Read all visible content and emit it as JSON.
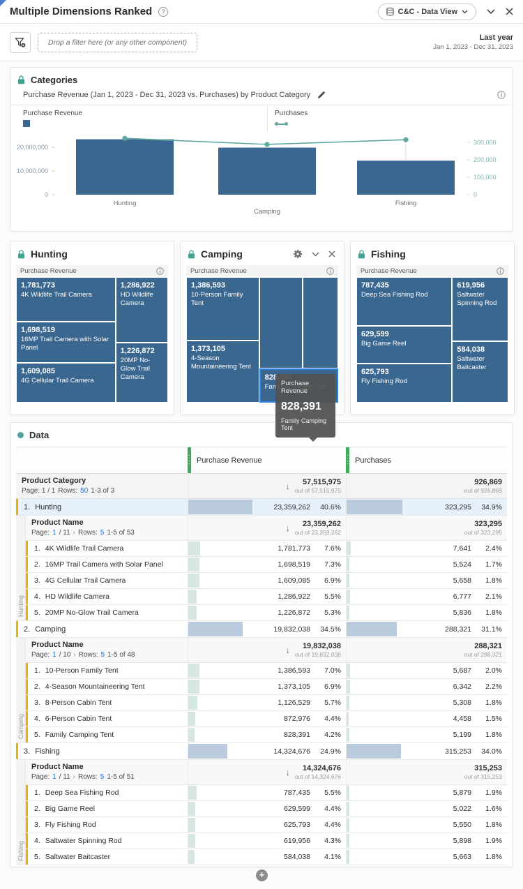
{
  "page": {
    "title": "Multiple Dimensions Ranked",
    "help": "?",
    "dataview_label": "C&C - Data View",
    "add_label": "+",
    "filter_bar": {
      "drop_placeholder": "Drop a filter here (or any other component)",
      "range_label": "Last year",
      "range_dates": "Jan 1, 2023 - Dec 31, 2023"
    }
  },
  "colors": {
    "bar_blue": "#3a6790",
    "line_teal": "#5fa8a0",
    "accent_yellow": "#efb100",
    "handle_green": "#3cab5a",
    "link_blue": "#1473e6",
    "selected_row": "#e7f1fb",
    "category_bar": "#b9cbdc",
    "product_bar": "#d6e7e3"
  },
  "categories_panel": {
    "title": "Categories",
    "subtitle": "Purchase Revenue (Jan 1, 2023 - Dec 31, 2023 vs. Purchases) by Product Category",
    "legend_left": "Purchase Revenue",
    "legend_right": "Purchases"
  },
  "chart_data": {
    "type": "bar",
    "categories": [
      "Hunting",
      "Camping",
      "Fishing"
    ],
    "series": [
      {
        "name": "Purchase Revenue",
        "type": "bar",
        "axis": "left",
        "color": "#3a6790",
        "values": [
          23359262,
          19832038,
          14324676
        ]
      },
      {
        "name": "Purchases",
        "type": "line",
        "axis": "right",
        "color": "#5fa8a0",
        "values": [
          323295,
          288321,
          315253
        ]
      }
    ],
    "left_axis": {
      "ticks": [
        {
          "label": "20,000,000",
          "value": 20000000
        },
        {
          "label": "10,000,000",
          "value": 10000000
        },
        {
          "label": "0",
          "value": 0
        }
      ],
      "max": 26000000
    },
    "right_axis": {
      "ticks": [
        {
          "label": "300,000",
          "value": 300000
        },
        {
          "label": "200,000",
          "value": 200000
        },
        {
          "label": "100,000",
          "value": 100000
        },
        {
          "label": "0",
          "value": 0
        }
      ],
      "max": 340000
    },
    "title": "Purchase Revenue (Jan 1, 2023 - Dec 31, 2023 vs. Purchases) by Product Category",
    "grid": false,
    "legend_position": "top"
  },
  "treemaps": [
    {
      "title": "Hunting",
      "metric_label": "Purchase Revenue",
      "cells": [
        {
          "value": "1,781,773",
          "name": "4K Wildlife Trail Camera"
        },
        {
          "value": "1,698,519",
          "name": "16MP Trail Camera with Solar Panel"
        },
        {
          "value": "1,609,085",
          "name": "4G Cellular Trail Camera"
        },
        {
          "value": "1,286,922",
          "name": "HD Wildlife Camera"
        },
        {
          "value": "1,226,872",
          "name": "20MP No-Glow Trail Camera"
        }
      ]
    },
    {
      "title": "Camping",
      "metric_label": "Purchase Revenue",
      "cells": [
        {
          "value": "1,386,593",
          "name": "10-Person Family Tent"
        },
        {
          "value": "1,373,105",
          "name": "4-Season Mountaineering Tent"
        },
        {
          "value": "",
          "name": ""
        },
        {
          "value": "",
          "name": ""
        },
        {
          "value": "828,391",
          "name": "Family Camping Tent"
        }
      ],
      "tooltip": {
        "metric": "Purchase Revenue",
        "value": "828,391",
        "name": "Family Camping Tent"
      }
    },
    {
      "title": "Fishing",
      "metric_label": "Purchase Revenue",
      "cells": [
        {
          "value": "787,435",
          "name": "Deep Sea Fishing Rod"
        },
        {
          "value": "629,599",
          "name": "Big Game Reel"
        },
        {
          "value": "625,793",
          "name": "Fly Fishing Rod"
        },
        {
          "value": "619,956",
          "name": "Saltwater Spinning Rod"
        },
        {
          "value": "584,038",
          "name": "Saltwater Baitcaster"
        }
      ]
    }
  ],
  "data_table": {
    "panel_title": "Data",
    "col_pr": "Purchase Revenue",
    "col_p": "Purchases",
    "category_header": {
      "label": "Product Category",
      "pag_pre": "Page: 1 / 1",
      "rows_label": "Rows:",
      "rows_value": "50",
      "range": "1-3 of 3",
      "sort_icon": "↓",
      "pr_total": "57,515,975",
      "pr_outof": "out of 57,515,975",
      "p_total": "926,869",
      "p_outof": "out of 926,869"
    },
    "sections": [
      {
        "gutter": "Hunting",
        "row": {
          "num": "1.",
          "name": "Hunting",
          "pr": "23,359,262",
          "pr_pct": "40.6%",
          "pr_w": 40.6,
          "p": "323,295",
          "p_pct": "34.9%",
          "p_w": 34.9
        },
        "sub": {
          "label": "Product Name",
          "pag_label": "Page:",
          "page": "1",
          "of": "/ 11",
          "chev": "›",
          "rows_label": "Rows:",
          "rows_value": "5",
          "range": "1-5 of 53",
          "sort_icon": "↓",
          "pr_total": "23,359,262",
          "pr_outof": "out of 23,359,262",
          "p_total": "323,295",
          "p_outof": "out of 323,295"
        },
        "rows": [
          {
            "num": "1.",
            "name": "4K Wildlife Trail Camera",
            "pr": "1,781,773",
            "pr_pct": "7.6%",
            "pr_w": 7.6,
            "p": "7,641",
            "p_pct": "2.4%",
            "p_w": 2.4
          },
          {
            "num": "2.",
            "name": "16MP Trail Camera with Solar Panel",
            "pr": "1,698,519",
            "pr_pct": "7.3%",
            "pr_w": 7.3,
            "p": "5,524",
            "p_pct": "1.7%",
            "p_w": 1.7
          },
          {
            "num": "3.",
            "name": "4G Cellular Trail Camera",
            "pr": "1,609,085",
            "pr_pct": "6.9%",
            "pr_w": 6.9,
            "p": "5,658",
            "p_pct": "1.8%",
            "p_w": 1.8
          },
          {
            "num": "4.",
            "name": "HD Wildlife Camera",
            "pr": "1,286,922",
            "pr_pct": "5.5%",
            "pr_w": 5.5,
            "p": "6,777",
            "p_pct": "2.1%",
            "p_w": 2.1
          },
          {
            "num": "5.",
            "name": "20MP No-Glow Trail Camera",
            "pr": "1,226,872",
            "pr_pct": "5.3%",
            "pr_w": 5.3,
            "p": "5,836",
            "p_pct": "1.8%",
            "p_w": 1.8
          }
        ]
      },
      {
        "gutter": "Camping",
        "row": {
          "num": "2.",
          "name": "Camping",
          "pr": "19,832,038",
          "pr_pct": "34.5%",
          "pr_w": 34.5,
          "p": "288,321",
          "p_pct": "31.1%",
          "p_w": 31.1
        },
        "sub": {
          "label": "Product Name",
          "pag_label": "Page:",
          "page": "1",
          "of": "/ 10",
          "chev": "›",
          "rows_label": "Rows:",
          "rows_value": "5",
          "range": "1-5 of 48",
          "sort_icon": "↓",
          "pr_total": "19,832,038",
          "pr_outof": "out of 19,832,038",
          "p_total": "288,321",
          "p_outof": "out of 288,321"
        },
        "rows": [
          {
            "num": "1.",
            "name": "10-Person Family Tent",
            "pr": "1,386,593",
            "pr_pct": "7.0%",
            "pr_w": 7.0,
            "p": "5,687",
            "p_pct": "2.0%",
            "p_w": 2.0
          },
          {
            "num": "2.",
            "name": "4-Season Mountaineering Tent",
            "pr": "1,373,105",
            "pr_pct": "6.9%",
            "pr_w": 6.9,
            "p": "6,342",
            "p_pct": "2.2%",
            "p_w": 2.2
          },
          {
            "num": "3.",
            "name": "8-Person Cabin Tent",
            "pr": "1,126,529",
            "pr_pct": "5.7%",
            "pr_w": 5.7,
            "p": "5,308",
            "p_pct": "1.8%",
            "p_w": 1.8
          },
          {
            "num": "4.",
            "name": "6-Person Cabin Tent",
            "pr": "872,976",
            "pr_pct": "4.4%",
            "pr_w": 4.4,
            "p": "4,458",
            "p_pct": "1.5%",
            "p_w": 1.5
          },
          {
            "num": "5.",
            "name": "Family Camping Tent",
            "pr": "828,391",
            "pr_pct": "4.2%",
            "pr_w": 4.2,
            "p": "5,199",
            "p_pct": "1.8%",
            "p_w": 1.8
          }
        ]
      },
      {
        "gutter": "Fishing",
        "row": {
          "num": "3.",
          "name": "Fishing",
          "pr": "14,324,676",
          "pr_pct": "24.9%",
          "pr_w": 24.9,
          "p": "315,253",
          "p_pct": "34.0%",
          "p_w": 34.0
        },
        "sub": {
          "label": "Product Name",
          "pag_label": "Page:",
          "page": "1",
          "of": "/ 11",
          "chev": "›",
          "rows_label": "Rows:",
          "rows_value": "5",
          "range": "1-5 of 51",
          "sort_icon": "↓",
          "pr_total": "14,324,676",
          "pr_outof": "out of 14,324,676",
          "p_total": "315,253",
          "p_outof": "out of 315,253"
        },
        "rows": [
          {
            "num": "1.",
            "name": "Deep Sea Fishing Rod",
            "pr": "787,435",
            "pr_pct": "5.5%",
            "pr_w": 5.5,
            "p": "5,879",
            "p_pct": "1.9%",
            "p_w": 1.9
          },
          {
            "num": "2.",
            "name": "Big Game Reel",
            "pr": "629,599",
            "pr_pct": "4.4%",
            "pr_w": 4.4,
            "p": "5,022",
            "p_pct": "1.6%",
            "p_w": 1.6
          },
          {
            "num": "3.",
            "name": "Fly Fishing Rod",
            "pr": "625,793",
            "pr_pct": "4.4%",
            "pr_w": 4.4,
            "p": "5,550",
            "p_pct": "1.8%",
            "p_w": 1.8
          },
          {
            "num": "4.",
            "name": "Saltwater Spinning Rod",
            "pr": "619,956",
            "pr_pct": "4.3%",
            "pr_w": 4.3,
            "p": "5,898",
            "p_pct": "1.9%",
            "p_w": 1.9
          },
          {
            "num": "5.",
            "name": "Saltwater Baitcaster",
            "pr": "584,038",
            "pr_pct": "4.1%",
            "pr_w": 4.1,
            "p": "5,663",
            "p_pct": "1.8%",
            "p_w": 1.8
          }
        ]
      }
    ]
  }
}
